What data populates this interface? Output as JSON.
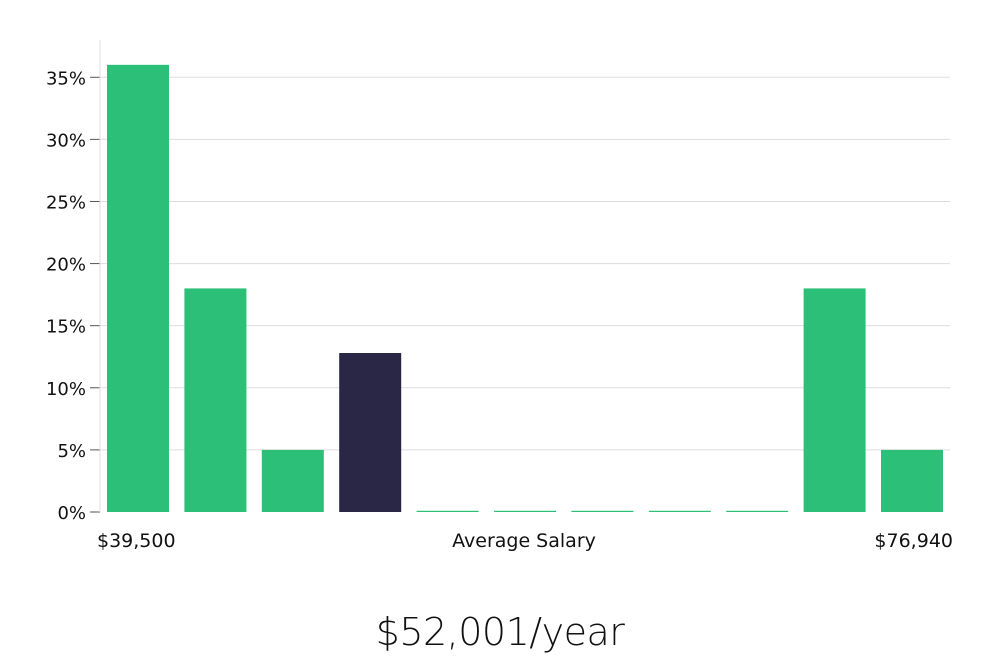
{
  "colors": {
    "bar": "#2bbf77",
    "bar_highlight": "#292646",
    "grid": "#dddddd",
    "axis": "#dddddd"
  },
  "chart_data": {
    "type": "bar",
    "title": "",
    "xlabel": "Average Salary",
    "ylabel": "",
    "x_min_label": "$39,500",
    "x_max_label": "$76,940",
    "ylim": [
      0,
      38
    ],
    "yticks": [
      0,
      5,
      10,
      15,
      20,
      25,
      30,
      35
    ],
    "ytick_labels": [
      "0%",
      "5%",
      "10%",
      "15%",
      "20%",
      "25%",
      "30%",
      "35%"
    ],
    "values": [
      36,
      18,
      5,
      12.8,
      0,
      0,
      0,
      0,
      0,
      18,
      5
    ],
    "highlight_index": 3,
    "grid": true
  },
  "summary": {
    "salary": "$52,001/year"
  }
}
